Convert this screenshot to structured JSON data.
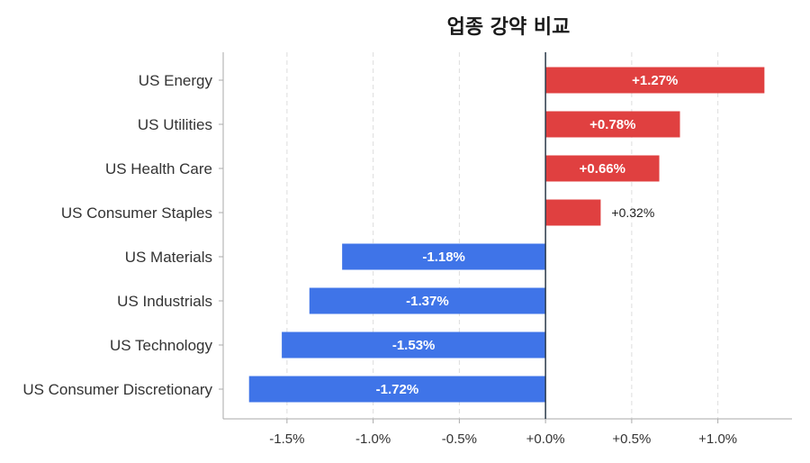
{
  "chart_data": {
    "type": "bar",
    "orientation": "horizontal",
    "title": "업종 강약 비교",
    "xlabel": "",
    "ylabel": "",
    "xlim": [
      -1.87,
      1.43
    ],
    "grid": "x-dashed",
    "legend": "none",
    "categories": [
      "US Energy",
      "US Utilities",
      "US Health Care",
      "US Consumer Staples",
      "US Materials",
      "US Industrials",
      "US Technology",
      "US Consumer Discretionary"
    ],
    "values": [
      1.27,
      0.78,
      0.66,
      0.32,
      -1.18,
      -1.37,
      -1.53,
      -1.72
    ],
    "value_labels": [
      "+1.27%",
      "+0.78%",
      "+0.66%",
      "+0.32%",
      "-1.18%",
      "-1.37%",
      "-1.53%",
      "-1.72%"
    ],
    "xticks": [
      -1.5,
      -1.0,
      -0.5,
      0.0,
      0.5,
      1.0
    ],
    "xtick_labels": [
      "-1.5%",
      "-1.0%",
      "-0.5%",
      "+0.0%",
      "+0.5%",
      "+1.0%"
    ],
    "colors": {
      "positive": "#e04040",
      "negative": "#3f74e8",
      "zero_line": "#2b3a4a",
      "grid": "#dddddd",
      "axis": "#aaaaaa"
    }
  }
}
